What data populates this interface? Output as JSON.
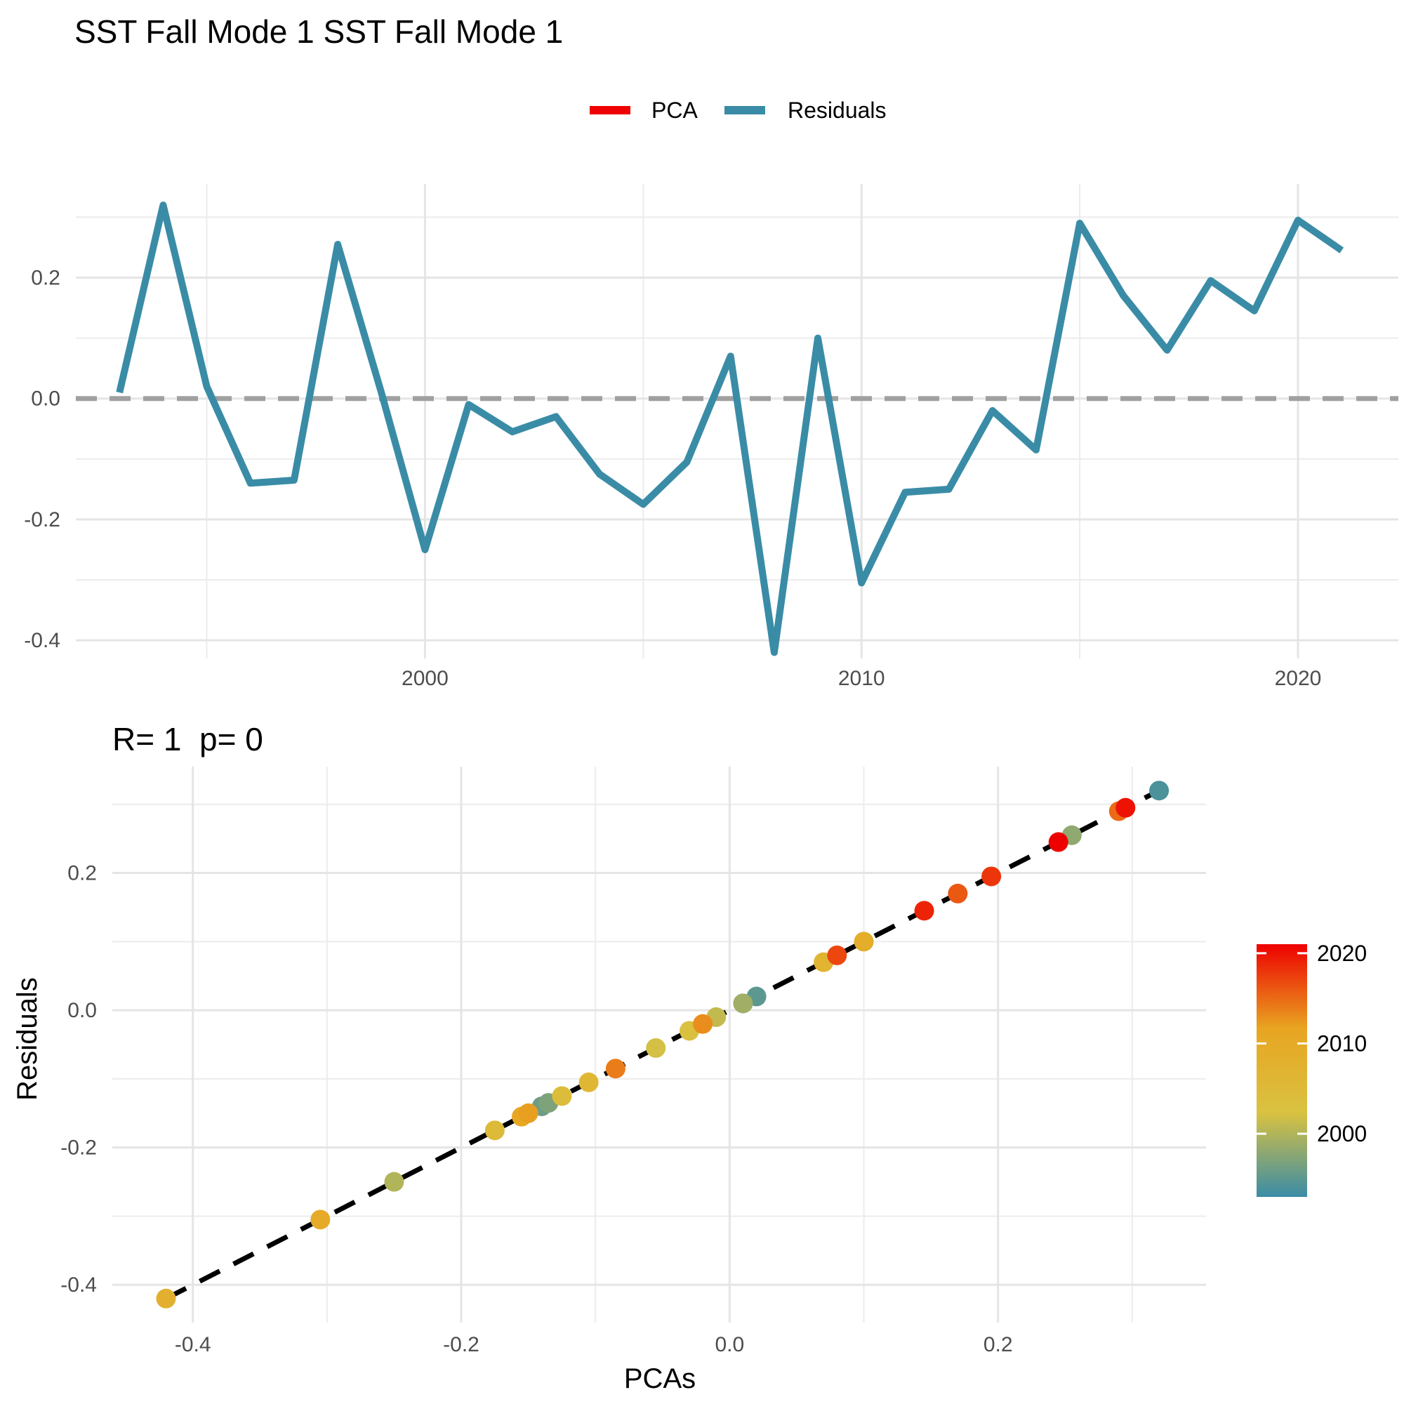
{
  "title": "SST Fall Mode 1 SST Fall Mode 1",
  "legend": {
    "position": "top",
    "items": [
      {
        "label": "PCA",
        "color": "#ee0000"
      },
      {
        "label": "Residuals",
        "color": "#3a8ca6"
      }
    ]
  },
  "colorbar": {
    "ticks": [
      "2020",
      "2010",
      "2000"
    ],
    "range": [
      1993,
      2021
    ],
    "colors": [
      "#3a8ca6",
      "#d9c241",
      "#e8a521",
      "#ee0000"
    ]
  },
  "chart_data": [
    {
      "type": "line",
      "series": [
        {
          "name": "Residuals",
          "color": "#3a8ca6",
          "x": [
            1993,
            1994,
            1995,
            1996,
            1997,
            1998,
            1999,
            2000,
            2001,
            2002,
            2003,
            2004,
            2005,
            2006,
            2007,
            2008,
            2009,
            2010,
            2011,
            2012,
            2013,
            2014,
            2015,
            2016,
            2017,
            2018,
            2019,
            2020,
            2021
          ],
          "y": [
            0.01,
            0.32,
            0.02,
            -0.14,
            -0.135,
            0.255,
            0.01,
            -0.25,
            -0.01,
            -0.055,
            -0.03,
            -0.125,
            -0.175,
            -0.105,
            0.07,
            -0.42,
            0.1,
            -0.305,
            -0.155,
            -0.15,
            -0.02,
            -0.085,
            0.29,
            0.17,
            0.08,
            0.195,
            0.145,
            0.295,
            0.245
          ]
        }
      ],
      "reference_line": {
        "y": 0,
        "style": "dashed",
        "color": "#a0a0a0"
      },
      "xticks": [
        "2000",
        "2010",
        "2020"
      ],
      "yticks": [
        "-0.4",
        "-0.2",
        "0.0",
        "0.2"
      ],
      "xlim": [
        1992,
        2022.3
      ],
      "ylim": [
        -0.43,
        0.355
      ],
      "grid": true
    },
    {
      "type": "scatter",
      "title": "R= 1  p= 0",
      "xlabel": "PCAs",
      "ylabel": "Residuals",
      "points": {
        "x": [
          0.01,
          0.32,
          0.02,
          -0.14,
          -0.135,
          0.255,
          0.01,
          -0.25,
          -0.01,
          -0.055,
          -0.03,
          -0.125,
          -0.175,
          -0.105,
          0.07,
          -0.42,
          0.1,
          -0.305,
          -0.155,
          -0.15,
          -0.02,
          -0.085,
          0.29,
          0.17,
          0.08,
          0.195,
          0.145,
          0.295,
          0.245
        ],
        "y": [
          0.01,
          0.32,
          0.02,
          -0.14,
          -0.135,
          0.255,
          0.01,
          -0.25,
          -0.01,
          -0.055,
          -0.03,
          -0.125,
          -0.175,
          -0.105,
          0.07,
          -0.42,
          0.1,
          -0.305,
          -0.155,
          -0.15,
          -0.02,
          -0.085,
          0.29,
          0.17,
          0.08,
          0.195,
          0.145,
          0.295,
          0.245
        ],
        "year": [
          1993,
          1994,
          1995,
          1996,
          1997,
          1998,
          1999,
          2000,
          2001,
          2002,
          2003,
          2004,
          2005,
          2006,
          2007,
          2008,
          2009,
          2010,
          2011,
          2012,
          2013,
          2014,
          2015,
          2016,
          2017,
          2018,
          2019,
          2020,
          2021
        ]
      },
      "fit_line": {
        "from": [
          -0.42,
          -0.42
        ],
        "to": [
          0.32,
          0.32
        ],
        "style": "dashed",
        "color": "#000000"
      },
      "xticks": [
        "-0.4",
        "-0.2",
        "0.0",
        "0.2"
      ],
      "yticks": [
        "-0.4",
        "-0.2",
        "0.0",
        "0.2"
      ],
      "xlim": [
        -0.46,
        0.355
      ],
      "ylim": [
        -0.455,
        0.355
      ],
      "grid": true
    }
  ]
}
